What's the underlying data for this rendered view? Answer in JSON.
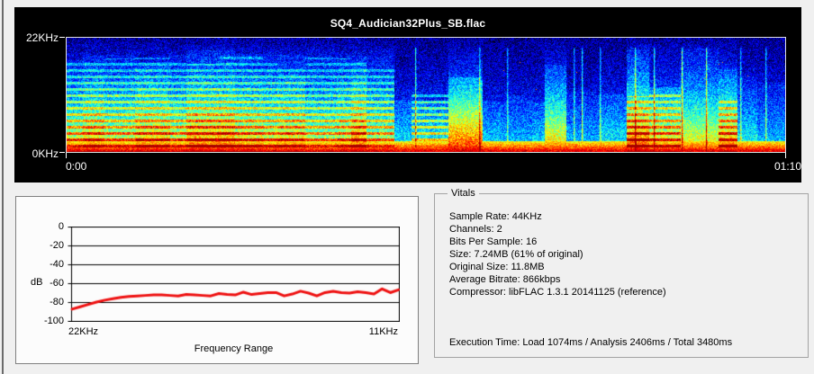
{
  "spectrogram": {
    "title": "SQ4_Audician32Plus_SB.flac",
    "freq_top": "22KHz",
    "freq_bottom": "0KHz",
    "time_start": "0:00",
    "time_end": "01:10"
  },
  "freq_chart": {
    "y_axis_label": "dB",
    "x_axis_label": "Frequency Range",
    "x_left": "22KHz",
    "x_right": "11KHz",
    "y_ticks": [
      "0",
      "-20",
      "-40",
      "-60",
      "-80",
      "-100"
    ]
  },
  "vitals": {
    "title": "Vitals",
    "lines": [
      "Sample Rate: 44KHz",
      "Channels: 2",
      "Bits Per Sample: 16",
      "Size: 7.24MB (61% of original)",
      "Original Size: 11.8MB",
      "Average Bitrate: 866kbps",
      "Compressor: libFLAC 1.3.1 20141125 (reference)"
    ],
    "execution": "Execution Time: Load 1074ms / Analysis 2406ms / Total 3480ms"
  },
  "colors": {
    "window_bg": "#f0f0f0",
    "spectrogram_panel_bg": "#000000",
    "line_red": "#ee1111",
    "chart_panel_bg": "#fcfcfc",
    "grid_color": "#000000"
  },
  "chart_data": [
    {
      "type": "heatmap",
      "title": "SQ4_Audician32Plus_SB.flac",
      "y_axis_range": [
        "0KHz",
        "22KHz"
      ],
      "x_axis_range": [
        "0:00",
        "01:10"
      ],
      "colormap": "jet",
      "description": "Audio spectrogram: blue noise background with black speckle at high frequencies, cyan-green horizontal harmonic bands dense in first 40% of timeline, vertical green song-structure columns of varying height in right half with narrow bright vertical lines and occasional orange dots, continuous yellow-orange-red energy band along the bottom (0KHz)."
    },
    {
      "type": "line",
      "xlabel": "Frequency Range",
      "ylabel": "dB",
      "x_left_label": "22KHz",
      "x_right_label": "11KHz",
      "ylim": [
        -100,
        0
      ],
      "y_ticks": [
        0,
        -20,
        -40,
        -60,
        -80,
        -100
      ],
      "grid": true,
      "values_db": [
        -87,
        -84.5,
        -82,
        -79.5,
        -77.5,
        -76,
        -74.5,
        -73.5,
        -73,
        -72.5,
        -72,
        -72,
        -72.5,
        -73,
        -71.5,
        -72,
        -72.5,
        -73,
        -70.5,
        -71.5,
        -72,
        -69,
        -71.5,
        -70.5,
        -69.5,
        -69.5,
        -73,
        -71,
        -68,
        -70,
        -73,
        -69.5,
        -68,
        -69.5,
        -70,
        -68.5,
        -69.5,
        -71,
        -65.5,
        -69.5,
        -66.5
      ]
    }
  ]
}
